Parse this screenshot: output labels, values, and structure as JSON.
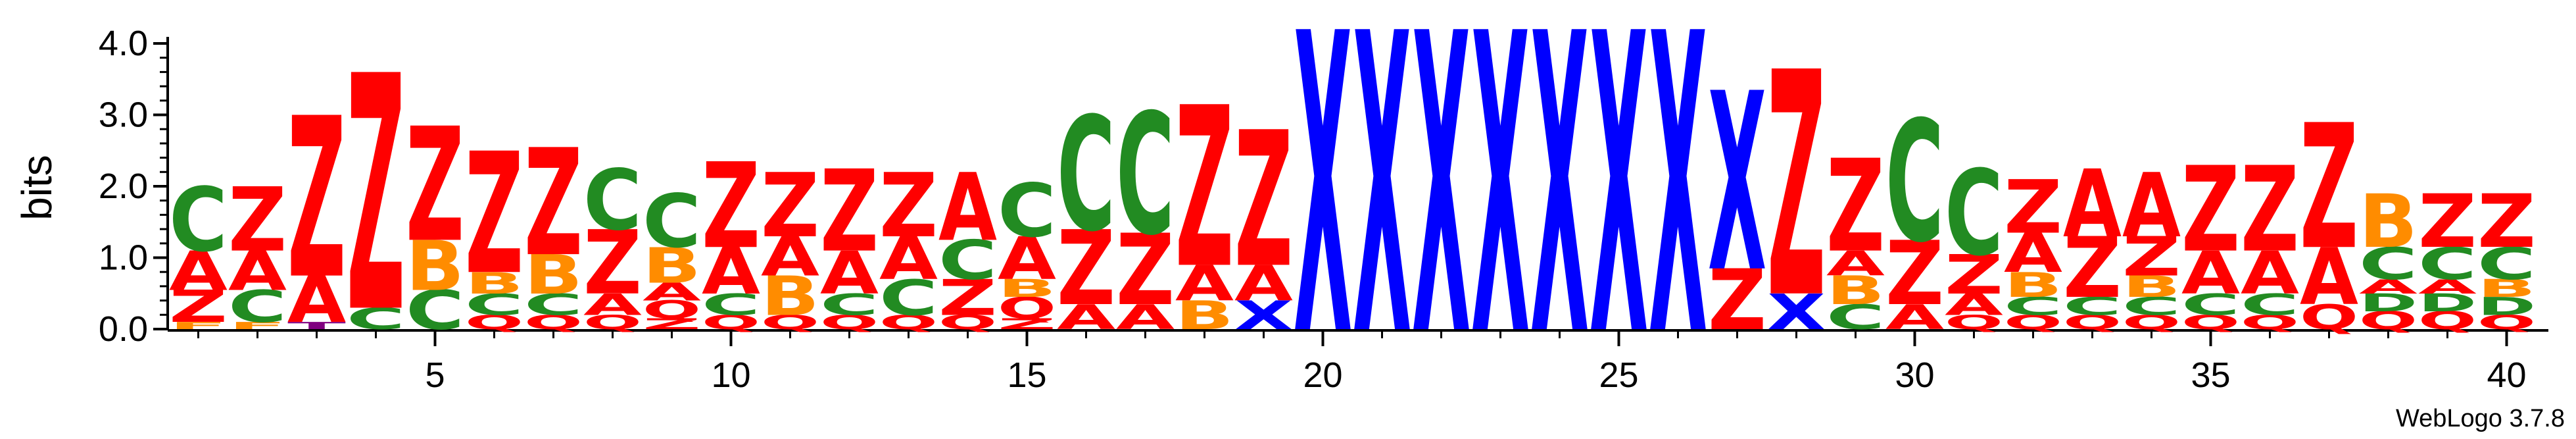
{
  "chart_data": {
    "type": "sequence-logo",
    "title": "",
    "xlabel": "",
    "ylabel": "bits",
    "ylim": [
      0,
      4.0
    ],
    "yticks": [
      {
        "value": 0.0,
        "label": "0.0"
      },
      {
        "value": 1.0,
        "label": "1.0"
      },
      {
        "value": 2.0,
        "label": "2.0"
      },
      {
        "value": 3.0,
        "label": "3.0"
      },
      {
        "value": 4.0,
        "label": "4.0"
      }
    ],
    "xlim": [
      1,
      40
    ],
    "xticks": [
      {
        "value": 5,
        "label": "5"
      },
      {
        "value": 10,
        "label": "10"
      },
      {
        "value": 15,
        "label": "15"
      },
      {
        "value": 20,
        "label": "20"
      },
      {
        "value": 25,
        "label": "25"
      },
      {
        "value": 30,
        "label": "30"
      },
      {
        "value": 35,
        "label": "35"
      },
      {
        "value": 40,
        "label": "40"
      }
    ],
    "colors": {
      "Z": "#ff0000",
      "Q": "#ff0000",
      "A": "#ff0000",
      "C": "#228b22",
      "B": "#ff8c00",
      "F": "#ff8c00",
      "X": "#0000ff",
      "T": "#800080",
      "D": "#228b22"
    },
    "positions": [
      {
        "pos": 1,
        "stack": [
          {
            "letter": "F",
            "bits": 0.1
          },
          {
            "letter": "Z",
            "bits": 0.45
          },
          {
            "letter": "A",
            "bits": 0.55
          },
          {
            "letter": "C",
            "bits": 0.9
          }
        ]
      },
      {
        "pos": 2,
        "stack": [
          {
            "letter": "F",
            "bits": 0.1
          },
          {
            "letter": "C",
            "bits": 0.45
          },
          {
            "letter": "A",
            "bits": 0.55
          },
          {
            "letter": "Z",
            "bits": 0.9
          }
        ]
      },
      {
        "pos": 3,
        "stack": [
          {
            "letter": "T",
            "bits": 0.1
          },
          {
            "letter": "A",
            "bits": 0.65
          },
          {
            "letter": "Z",
            "bits": 2.25
          }
        ]
      },
      {
        "pos": 4,
        "stack": [
          {
            "letter": "C",
            "bits": 0.3
          },
          {
            "letter": "Z",
            "bits": 3.3
          }
        ]
      },
      {
        "pos": 5,
        "stack": [
          {
            "letter": "C",
            "bits": 0.55
          },
          {
            "letter": "B",
            "bits": 0.7
          },
          {
            "letter": "Z",
            "bits": 1.6
          }
        ]
      },
      {
        "pos": 6,
        "stack": [
          {
            "letter": "Q",
            "bits": 0.2
          },
          {
            "letter": "C",
            "bits": 0.3
          },
          {
            "letter": "B",
            "bits": 0.3
          },
          {
            "letter": "Z",
            "bits": 1.7
          }
        ]
      },
      {
        "pos": 7,
        "stack": [
          {
            "letter": "Q",
            "bits": 0.2
          },
          {
            "letter": "C",
            "bits": 0.3
          },
          {
            "letter": "B",
            "bits": 0.55
          },
          {
            "letter": "Z",
            "bits": 1.5
          }
        ]
      },
      {
        "pos": 8,
        "stack": [
          {
            "letter": "Q",
            "bits": 0.2
          },
          {
            "letter": "A",
            "bits": 0.3
          },
          {
            "letter": "Z",
            "bits": 0.9
          },
          {
            "letter": "C",
            "bits": 0.85
          }
        ]
      },
      {
        "pos": 9,
        "stack": [
          {
            "letter": "Z",
            "bits": 0.15
          },
          {
            "letter": "Q",
            "bits": 0.25
          },
          {
            "letter": "A",
            "bits": 0.25
          },
          {
            "letter": "B",
            "bits": 0.5
          },
          {
            "letter": "C",
            "bits": 0.75
          }
        ]
      },
      {
        "pos": 10,
        "stack": [
          {
            "letter": "Q",
            "bits": 0.2
          },
          {
            "letter": "C",
            "bits": 0.3
          },
          {
            "letter": "A",
            "bits": 0.65
          },
          {
            "letter": "Z",
            "bits": 1.2
          }
        ]
      },
      {
        "pos": 11,
        "stack": [
          {
            "letter": "Q",
            "bits": 0.2
          },
          {
            "letter": "B",
            "bits": 0.55
          },
          {
            "letter": "A",
            "bits": 0.55
          },
          {
            "letter": "Z",
            "bits": 0.9
          }
        ]
      },
      {
        "pos": 12,
        "stack": [
          {
            "letter": "Q",
            "bits": 0.2
          },
          {
            "letter": "C",
            "bits": 0.3
          },
          {
            "letter": "A",
            "bits": 0.6
          },
          {
            "letter": "Z",
            "bits": 1.15
          }
        ]
      },
      {
        "pos": 13,
        "stack": [
          {
            "letter": "Q",
            "bits": 0.2
          },
          {
            "letter": "C",
            "bits": 0.5
          },
          {
            "letter": "A",
            "bits": 0.6
          },
          {
            "letter": "Z",
            "bits": 0.9
          }
        ]
      },
      {
        "pos": 14,
        "stack": [
          {
            "letter": "Q",
            "bits": 0.2
          },
          {
            "letter": "Z",
            "bits": 0.5
          },
          {
            "letter": "C",
            "bits": 0.55
          },
          {
            "letter": "A",
            "bits": 0.95
          }
        ]
      },
      {
        "pos": 15,
        "stack": [
          {
            "letter": "Z",
            "bits": 0.15
          },
          {
            "letter": "Q",
            "bits": 0.3
          },
          {
            "letter": "B",
            "bits": 0.25
          },
          {
            "letter": "A",
            "bits": 0.6
          },
          {
            "letter": "C",
            "bits": 0.75
          }
        ]
      },
      {
        "pos": 16,
        "stack": [
          {
            "letter": "A",
            "bits": 0.35
          },
          {
            "letter": "Z",
            "bits": 1.05
          },
          {
            "letter": "C",
            "bits": 1.6
          }
        ]
      },
      {
        "pos": 17,
        "stack": [
          {
            "letter": "A",
            "bits": 0.35
          },
          {
            "letter": "Z",
            "bits": 1.0
          },
          {
            "letter": "C",
            "bits": 1.7
          }
        ]
      },
      {
        "pos": 18,
        "stack": [
          {
            "letter": "B",
            "bits": 0.4
          },
          {
            "letter": "A",
            "bits": 0.5
          },
          {
            "letter": "Z",
            "bits": 2.25
          }
        ]
      },
      {
        "pos": 19,
        "stack": [
          {
            "letter": "X",
            "bits": 0.4
          },
          {
            "letter": "A",
            "bits": 0.5
          },
          {
            "letter": "Z",
            "bits": 1.9
          }
        ]
      },
      {
        "pos": 20,
        "stack": [
          {
            "letter": "X",
            "bits": 4.2
          }
        ]
      },
      {
        "pos": 21,
        "stack": [
          {
            "letter": "X",
            "bits": 4.2
          }
        ]
      },
      {
        "pos": 22,
        "stack": [
          {
            "letter": "X",
            "bits": 4.2
          }
        ]
      },
      {
        "pos": 23,
        "stack": [
          {
            "letter": "X",
            "bits": 4.2
          }
        ]
      },
      {
        "pos": 24,
        "stack": [
          {
            "letter": "X",
            "bits": 4.2
          }
        ]
      },
      {
        "pos": 25,
        "stack": [
          {
            "letter": "X",
            "bits": 4.2
          }
        ]
      },
      {
        "pos": 26,
        "stack": [
          {
            "letter": "X",
            "bits": 4.2
          }
        ]
      },
      {
        "pos": 27,
        "stack": [
          {
            "letter": "Z",
            "bits": 0.85
          },
          {
            "letter": "X",
            "bits": 2.5
          }
        ]
      },
      {
        "pos": 28,
        "stack": [
          {
            "letter": "X",
            "bits": 0.5
          },
          {
            "letter": "Z",
            "bits": 3.15
          }
        ]
      },
      {
        "pos": 29,
        "stack": [
          {
            "letter": "C",
            "bits": 0.35
          },
          {
            "letter": "B",
            "bits": 0.4
          },
          {
            "letter": "A",
            "bits": 0.35
          },
          {
            "letter": "Z",
            "bits": 1.3
          }
        ]
      },
      {
        "pos": 30,
        "stack": [
          {
            "letter": "A",
            "bits": 0.35
          },
          {
            "letter": "Z",
            "bits": 0.9
          },
          {
            "letter": "C",
            "bits": 1.7
          }
        ]
      },
      {
        "pos": 31,
        "stack": [
          {
            "letter": "Q",
            "bits": 0.2
          },
          {
            "letter": "A",
            "bits": 0.3
          },
          {
            "letter": "Z",
            "bits": 0.55
          },
          {
            "letter": "C",
            "bits": 1.2
          }
        ]
      },
      {
        "pos": 32,
        "stack": [
          {
            "letter": "Q",
            "bits": 0.2
          },
          {
            "letter": "C",
            "bits": 0.25
          },
          {
            "letter": "B",
            "bits": 0.35
          },
          {
            "letter": "A",
            "bits": 0.55
          },
          {
            "letter": "Z",
            "bits": 0.75
          }
        ]
      },
      {
        "pos": 33,
        "stack": [
          {
            "letter": "Q",
            "bits": 0.2
          },
          {
            "letter": "C",
            "bits": 0.25
          },
          {
            "letter": "Z",
            "bits": 0.85
          },
          {
            "letter": "A",
            "bits": 0.95
          }
        ]
      },
      {
        "pos": 34,
        "stack": [
          {
            "letter": "Q",
            "bits": 0.2
          },
          {
            "letter": "C",
            "bits": 0.25
          },
          {
            "letter": "B",
            "bits": 0.3
          },
          {
            "letter": "Z",
            "bits": 0.55
          },
          {
            "letter": "A",
            "bits": 0.9
          }
        ]
      },
      {
        "pos": 35,
        "stack": [
          {
            "letter": "Q",
            "bits": 0.2
          },
          {
            "letter": "C",
            "bits": 0.3
          },
          {
            "letter": "A",
            "bits": 0.6
          },
          {
            "letter": "Z",
            "bits": 1.2
          }
        ]
      },
      {
        "pos": 36,
        "stack": [
          {
            "letter": "Q",
            "bits": 0.2
          },
          {
            "letter": "C",
            "bits": 0.3
          },
          {
            "letter": "A",
            "bits": 0.6
          },
          {
            "letter": "Z",
            "bits": 1.2
          }
        ]
      },
      {
        "pos": 37,
        "stack": [
          {
            "letter": "Q",
            "bits": 0.35
          },
          {
            "letter": "A",
            "bits": 0.8
          },
          {
            "letter": "Z",
            "bits": 1.75
          }
        ]
      },
      {
        "pos": 38,
        "stack": [
          {
            "letter": "Q",
            "bits": 0.25
          },
          {
            "letter": "D",
            "bits": 0.25
          },
          {
            "letter": "A",
            "bits": 0.2
          },
          {
            "letter": "C",
            "bits": 0.45
          },
          {
            "letter": "B",
            "bits": 0.75
          }
        ]
      },
      {
        "pos": 39,
        "stack": [
          {
            "letter": "Q",
            "bits": 0.25
          },
          {
            "letter": "D",
            "bits": 0.25
          },
          {
            "letter": "A",
            "bits": 0.2
          },
          {
            "letter": "C",
            "bits": 0.45
          },
          {
            "letter": "Z",
            "bits": 0.75
          }
        ]
      },
      {
        "pos": 40,
        "stack": [
          {
            "letter": "Q",
            "bits": 0.2
          },
          {
            "letter": "D",
            "bits": 0.25
          },
          {
            "letter": "B",
            "bits": 0.25
          },
          {
            "letter": "C",
            "bits": 0.45
          },
          {
            "letter": "Z",
            "bits": 0.75
          }
        ]
      }
    ]
  },
  "footer": {
    "credit": "WebLogo 3.7.8"
  }
}
